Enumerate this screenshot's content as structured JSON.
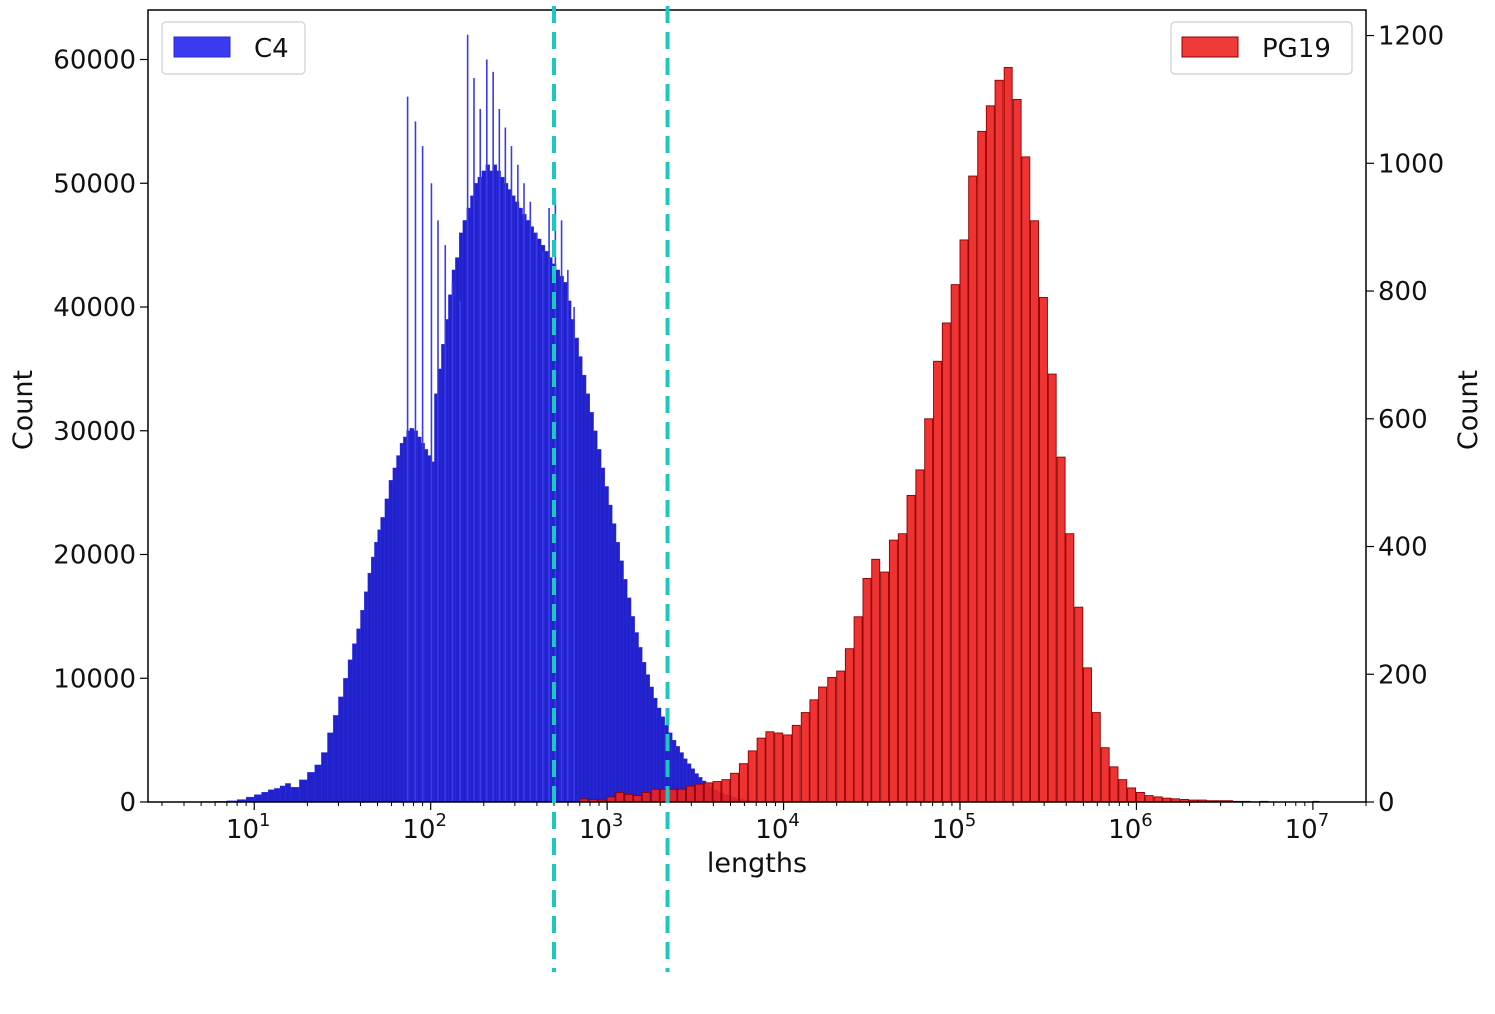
{
  "chart_data": {
    "type": "bar",
    "xlabel": "lengths",
    "ylabel_left": "Count",
    "ylabel_right": "Count",
    "xscale": "log",
    "xlim": [
      2.5,
      20000000
    ],
    "x_ticks": [
      {
        "value": 10,
        "base": "10",
        "exp": "1"
      },
      {
        "value": 100,
        "base": "10",
        "exp": "2"
      },
      {
        "value": 1000,
        "base": "10",
        "exp": "3"
      },
      {
        "value": 10000,
        "base": "10",
        "exp": "4"
      },
      {
        "value": 100000,
        "base": "10",
        "exp": "5"
      },
      {
        "value": 1000000,
        "base": "10",
        "exp": "6"
      },
      {
        "value": 10000000,
        "base": "10",
        "exp": "7"
      }
    ],
    "ylim_left": [
      0,
      64000
    ],
    "yticks_left": [
      "0",
      "10000",
      "20000",
      "30000",
      "40000",
      "50000",
      "60000"
    ],
    "ylim_right": [
      0,
      1240
    ],
    "yticks_right": [
      "0",
      "200",
      "400",
      "600",
      "800",
      "1000",
      "1200"
    ],
    "legend": {
      "left": "top-left",
      "right": "top-right"
    },
    "series": [
      {
        "name": "C4",
        "axis": "left",
        "color": "#2222cc",
        "edge_color": "#3a3aee",
        "points": [
          [
            4,
            30
          ],
          [
            5,
            40
          ],
          [
            6,
            60
          ],
          [
            7,
            100
          ],
          [
            8,
            200
          ],
          [
            9,
            400
          ],
          [
            10,
            600
          ],
          [
            11,
            800
          ],
          [
            12,
            1000
          ],
          [
            13,
            1100
          ],
          [
            14,
            1300
          ],
          [
            15,
            1500
          ],
          [
            16,
            1200
          ],
          [
            18,
            1800
          ],
          [
            20,
            2400
          ],
          [
            22,
            3000
          ],
          [
            24,
            4000
          ],
          [
            26,
            5600
          ],
          [
            28,
            7000
          ],
          [
            30,
            8500
          ],
          [
            32,
            10000
          ],
          [
            34,
            11500
          ],
          [
            36,
            12800
          ],
          [
            38,
            14000
          ],
          [
            40,
            15500
          ],
          [
            42,
            17000
          ],
          [
            44,
            18500
          ],
          [
            46,
            19800
          ],
          [
            48,
            21000
          ],
          [
            50,
            22000
          ],
          [
            52,
            23000
          ],
          [
            55,
            24500
          ],
          [
            58,
            26000
          ],
          [
            61,
            27000
          ],
          [
            64,
            28000
          ],
          [
            67,
            29000
          ],
          [
            70,
            29500
          ],
          [
            73,
            30000
          ],
          [
            76,
            30200
          ],
          [
            80,
            30000
          ],
          [
            84,
            29500
          ],
          [
            88,
            29000
          ],
          [
            92,
            28500
          ],
          [
            96,
            28000
          ],
          [
            100,
            27500
          ],
          [
            105,
            33000
          ],
          [
            110,
            35000
          ],
          [
            115,
            37000
          ],
          [
            120,
            39000
          ],
          [
            126,
            41000
          ],
          [
            132,
            43000
          ],
          [
            138,
            44000
          ],
          [
            145,
            46000
          ],
          [
            152,
            47000
          ],
          [
            160,
            48000
          ],
          [
            168,
            49000
          ],
          [
            176,
            50000
          ],
          [
            185,
            50500
          ],
          [
            195,
            51000
          ],
          [
            205,
            51500
          ],
          [
            215,
            51000
          ],
          [
            225,
            51500
          ],
          [
            236,
            51000
          ],
          [
            248,
            50500
          ],
          [
            260,
            50000
          ],
          [
            273,
            49500
          ],
          [
            287,
            49000
          ],
          [
            300,
            48500
          ],
          [
            315,
            48000
          ],
          [
            330,
            47500
          ],
          [
            347,
            47000
          ],
          [
            364,
            46500
          ],
          [
            382,
            46000
          ],
          [
            401,
            45500
          ],
          [
            421,
            45000
          ],
          [
            442,
            44500
          ],
          [
            464,
            44000
          ],
          [
            487,
            43500
          ],
          [
            511,
            43000
          ],
          [
            537,
            42500
          ],
          [
            564,
            42000
          ],
          [
            592,
            40500
          ],
          [
            622,
            39000
          ],
          [
            653,
            37500
          ],
          [
            686,
            36000
          ],
          [
            720,
            34500
          ],
          [
            756,
            33000
          ],
          [
            794,
            31500
          ],
          [
            834,
            30000
          ],
          [
            876,
            28500
          ],
          [
            920,
            27000
          ],
          [
            966,
            25500
          ],
          [
            1014,
            24000
          ],
          [
            1065,
            22500
          ],
          [
            1118,
            21000
          ],
          [
            1174,
            19500
          ],
          [
            1233,
            18000
          ],
          [
            1295,
            16500
          ],
          [
            1360,
            15000
          ],
          [
            1428,
            13700
          ],
          [
            1500,
            12500
          ],
          [
            1575,
            11300
          ],
          [
            1654,
            10300
          ],
          [
            1737,
            9300
          ],
          [
            1824,
            8400
          ],
          [
            1915,
            7600
          ],
          [
            2011,
            6900
          ],
          [
            2112,
            6200
          ],
          [
            2218,
            5600
          ],
          [
            2329,
            5000
          ],
          [
            2446,
            4500
          ],
          [
            2569,
            4000
          ],
          [
            2698,
            3500
          ],
          [
            2833,
            3100
          ],
          [
            2975,
            2700
          ],
          [
            3124,
            2300
          ],
          [
            3281,
            2000
          ],
          [
            3445,
            1700
          ],
          [
            3617,
            1450
          ],
          [
            3798,
            1200
          ],
          [
            3988,
            1000
          ],
          [
            4188,
            850
          ],
          [
            4398,
            700
          ],
          [
            4618,
            580
          ],
          [
            4849,
            470
          ],
          [
            5091,
            380
          ],
          [
            5346,
            300
          ],
          [
            5613,
            240
          ],
          [
            5894,
            190
          ],
          [
            6189,
            150
          ],
          [
            6498,
            110
          ],
          [
            6823,
            80
          ],
          [
            7164,
            60
          ],
          [
            7522,
            40
          ],
          [
            7898,
            30
          ],
          [
            8293,
            20
          ],
          [
            8708,
            15
          ],
          [
            9143,
            10
          ]
        ],
        "spikes": [
          [
            74,
            57000
          ],
          [
            82,
            55000
          ],
          [
            90,
            53000
          ],
          [
            101,
            50000
          ],
          [
            110,
            47000
          ],
          [
            121,
            45000
          ],
          [
            133,
            42000
          ],
          [
            147,
            40500
          ],
          [
            162,
            62000
          ],
          [
            176,
            58500
          ],
          [
            191,
            56000
          ],
          [
            208,
            60000
          ],
          [
            226,
            59000
          ],
          [
            245,
            56000
          ],
          [
            265,
            54500
          ],
          [
            287,
            53000
          ],
          [
            312,
            51500
          ],
          [
            338,
            50000
          ],
          [
            367,
            48500
          ],
          [
            398,
            46000
          ],
          [
            432,
            44500
          ],
          [
            469,
            48000
          ],
          [
            509,
            49000
          ],
          [
            552,
            47000
          ],
          [
            599,
            43000
          ],
          [
            650,
            40000
          ]
        ]
      },
      {
        "name": "PG19",
        "axis": "right",
        "color": "#ee2222",
        "edge_color": "#8b0000",
        "points": [
          [
            700,
            5
          ],
          [
            790,
            4
          ],
          [
            890,
            3
          ],
          [
            1000,
            8
          ],
          [
            1120,
            15
          ],
          [
            1260,
            12
          ],
          [
            1410,
            10
          ],
          [
            1580,
            15
          ],
          [
            1780,
            20
          ],
          [
            2000,
            20
          ],
          [
            2240,
            20
          ],
          [
            2510,
            20
          ],
          [
            2820,
            25
          ],
          [
            3160,
            28
          ],
          [
            3550,
            30
          ],
          [
            3980,
            32
          ],
          [
            4470,
            35
          ],
          [
            5010,
            45
          ],
          [
            5620,
            60
          ],
          [
            6310,
            80
          ],
          [
            7080,
            100
          ],
          [
            7940,
            110
          ],
          [
            8910,
            108
          ],
          [
            10000,
            105
          ],
          [
            11200,
            120
          ],
          [
            12600,
            140
          ],
          [
            14100,
            160
          ],
          [
            15800,
            180
          ],
          [
            17800,
            195
          ],
          [
            20000,
            205
          ],
          [
            22400,
            240
          ],
          [
            25100,
            290
          ],
          [
            28200,
            350
          ],
          [
            31600,
            380
          ],
          [
            35500,
            360
          ],
          [
            39800,
            410
          ],
          [
            44700,
            420
          ],
          [
            50100,
            480
          ],
          [
            56200,
            520
          ],
          [
            63100,
            600
          ],
          [
            70800,
            690
          ],
          [
            79400,
            750
          ],
          [
            89100,
            810
          ],
          [
            100000,
            880
          ],
          [
            112000,
            980
          ],
          [
            126000,
            1050
          ],
          [
            141000,
            1090
          ],
          [
            158000,
            1130
          ],
          [
            178000,
            1150
          ],
          [
            200000,
            1100
          ],
          [
            224000,
            1010
          ],
          [
            251000,
            910
          ],
          [
            282000,
            790
          ],
          [
            316000,
            670
          ],
          [
            355000,
            540
          ],
          [
            398000,
            420
          ],
          [
            447000,
            305
          ],
          [
            501000,
            210
          ],
          [
            562000,
            140
          ],
          [
            631000,
            85
          ],
          [
            708000,
            55
          ],
          [
            794000,
            35
          ],
          [
            891000,
            22
          ],
          [
            1000000,
            15
          ],
          [
            1120000,
            10
          ],
          [
            1260000,
            8
          ],
          [
            1410000,
            6
          ],
          [
            1580000,
            5
          ],
          [
            1780000,
            4
          ],
          [
            2000000,
            3
          ],
          [
            2240000,
            3
          ],
          [
            2510000,
            2
          ],
          [
            2820000,
            2
          ],
          [
            3160000,
            2
          ],
          [
            3550000,
            1
          ],
          [
            3980000,
            1
          ],
          [
            5010000,
            1
          ],
          [
            10000000,
            1
          ]
        ]
      }
    ],
    "reference_lines": [
      {
        "x": 500,
        "style": "dashed",
        "color": "#1ec8c0"
      },
      {
        "x": 2200,
        "style": "dashed",
        "color": "#1ec8c0"
      }
    ]
  }
}
